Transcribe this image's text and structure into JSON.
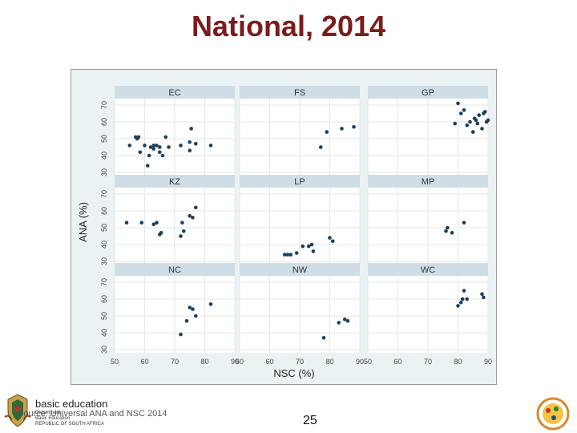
{
  "slide": {
    "title": "National, 2014",
    "source_note": "Source: Universal ANA and NSC 2014",
    "page_number": "25"
  },
  "footer": {
    "logo_brand": "basic education",
    "logo_line1": "Department:",
    "logo_line2": "Basic Education",
    "logo_line3": "REPUBLIC OF SOUTH AFRICA"
  },
  "chart_data": {
    "type": "scatter",
    "xlabel": "NSC (%)",
    "ylabel": "ANA (%)",
    "xlim": [
      50,
      90
    ],
    "ylim": [
      30,
      70
    ],
    "xticks": [
      50,
      60,
      70,
      80,
      90
    ],
    "yticks": [
      30,
      40,
      50,
      60,
      70
    ],
    "grid": true,
    "layout": "3x3 facets",
    "colors": {
      "points": "#1f3f5b",
      "strip": "#cfdde6",
      "panel": "#ffffff",
      "background": "#eaf2f3"
    },
    "panels": [
      {
        "name": "EC",
        "points": [
          [
            55,
            46
          ],
          [
            57,
            51
          ],
          [
            57.5,
            50
          ],
          [
            58,
            51
          ],
          [
            58.5,
            42
          ],
          [
            60,
            46
          ],
          [
            61,
            34
          ],
          [
            61.5,
            40
          ],
          [
            62,
            45
          ],
          [
            63,
            46
          ],
          [
            63,
            44
          ],
          [
            64,
            46
          ],
          [
            65,
            45
          ],
          [
            65,
            42
          ],
          [
            66,
            40
          ],
          [
            67,
            51
          ],
          [
            68,
            45
          ],
          [
            72,
            46
          ],
          [
            75,
            48
          ],
          [
            75,
            43
          ],
          [
            75.5,
            56
          ],
          [
            77,
            47
          ],
          [
            82,
            46
          ]
        ]
      },
      {
        "name": "FS",
        "points": [
          [
            77,
            45
          ],
          [
            79,
            54
          ],
          [
            84,
            56
          ],
          [
            88,
            57
          ]
        ]
      },
      {
        "name": "GP",
        "points": [
          [
            79,
            59
          ],
          [
            80,
            71
          ],
          [
            81,
            65
          ],
          [
            82,
            67
          ],
          [
            83,
            58
          ],
          [
            84,
            60
          ],
          [
            85,
            54
          ],
          [
            85.5,
            62
          ],
          [
            86,
            61
          ],
          [
            86.5,
            59
          ],
          [
            87,
            64
          ],
          [
            88,
            56
          ],
          [
            88.5,
            65
          ],
          [
            89,
            66
          ],
          [
            89.5,
            60
          ],
          [
            90,
            61
          ]
        ]
      },
      {
        "name": "KZ",
        "points": [
          [
            54,
            53
          ],
          [
            59,
            53
          ],
          [
            63,
            52
          ],
          [
            64,
            53
          ],
          [
            65,
            46
          ],
          [
            65.5,
            47
          ],
          [
            72,
            45
          ],
          [
            72.5,
            53
          ],
          [
            73,
            48
          ],
          [
            75,
            57
          ],
          [
            76,
            56
          ],
          [
            77,
            62
          ]
        ]
      },
      {
        "name": "LP",
        "points": [
          [
            65,
            34
          ],
          [
            66,
            34
          ],
          [
            67,
            34
          ],
          [
            69,
            35
          ],
          [
            71,
            39
          ],
          [
            73,
            39
          ],
          [
            74,
            40
          ],
          [
            74.5,
            36
          ],
          [
            80,
            44
          ],
          [
            81,
            42
          ]
        ]
      },
      {
        "name": "MP",
        "points": [
          [
            76,
            48
          ],
          [
            76.5,
            50
          ],
          [
            78,
            47
          ],
          [
            82,
            53
          ]
        ]
      },
      {
        "name": "NC",
        "points": [
          [
            72,
            39
          ],
          [
            74,
            47
          ],
          [
            75,
            55
          ],
          [
            76,
            54
          ],
          [
            77,
            50
          ],
          [
            82,
            57
          ]
        ]
      },
      {
        "name": "NW",
        "points": [
          [
            78,
            37
          ],
          [
            83,
            46
          ],
          [
            85,
            48
          ],
          [
            86,
            47
          ]
        ]
      },
      {
        "name": "WC",
        "points": [
          [
            80,
            56
          ],
          [
            81,
            58
          ],
          [
            81.5,
            60
          ],
          [
            82,
            65
          ],
          [
            83,
            60
          ],
          [
            88,
            63
          ],
          [
            88.5,
            61
          ]
        ]
      }
    ]
  }
}
